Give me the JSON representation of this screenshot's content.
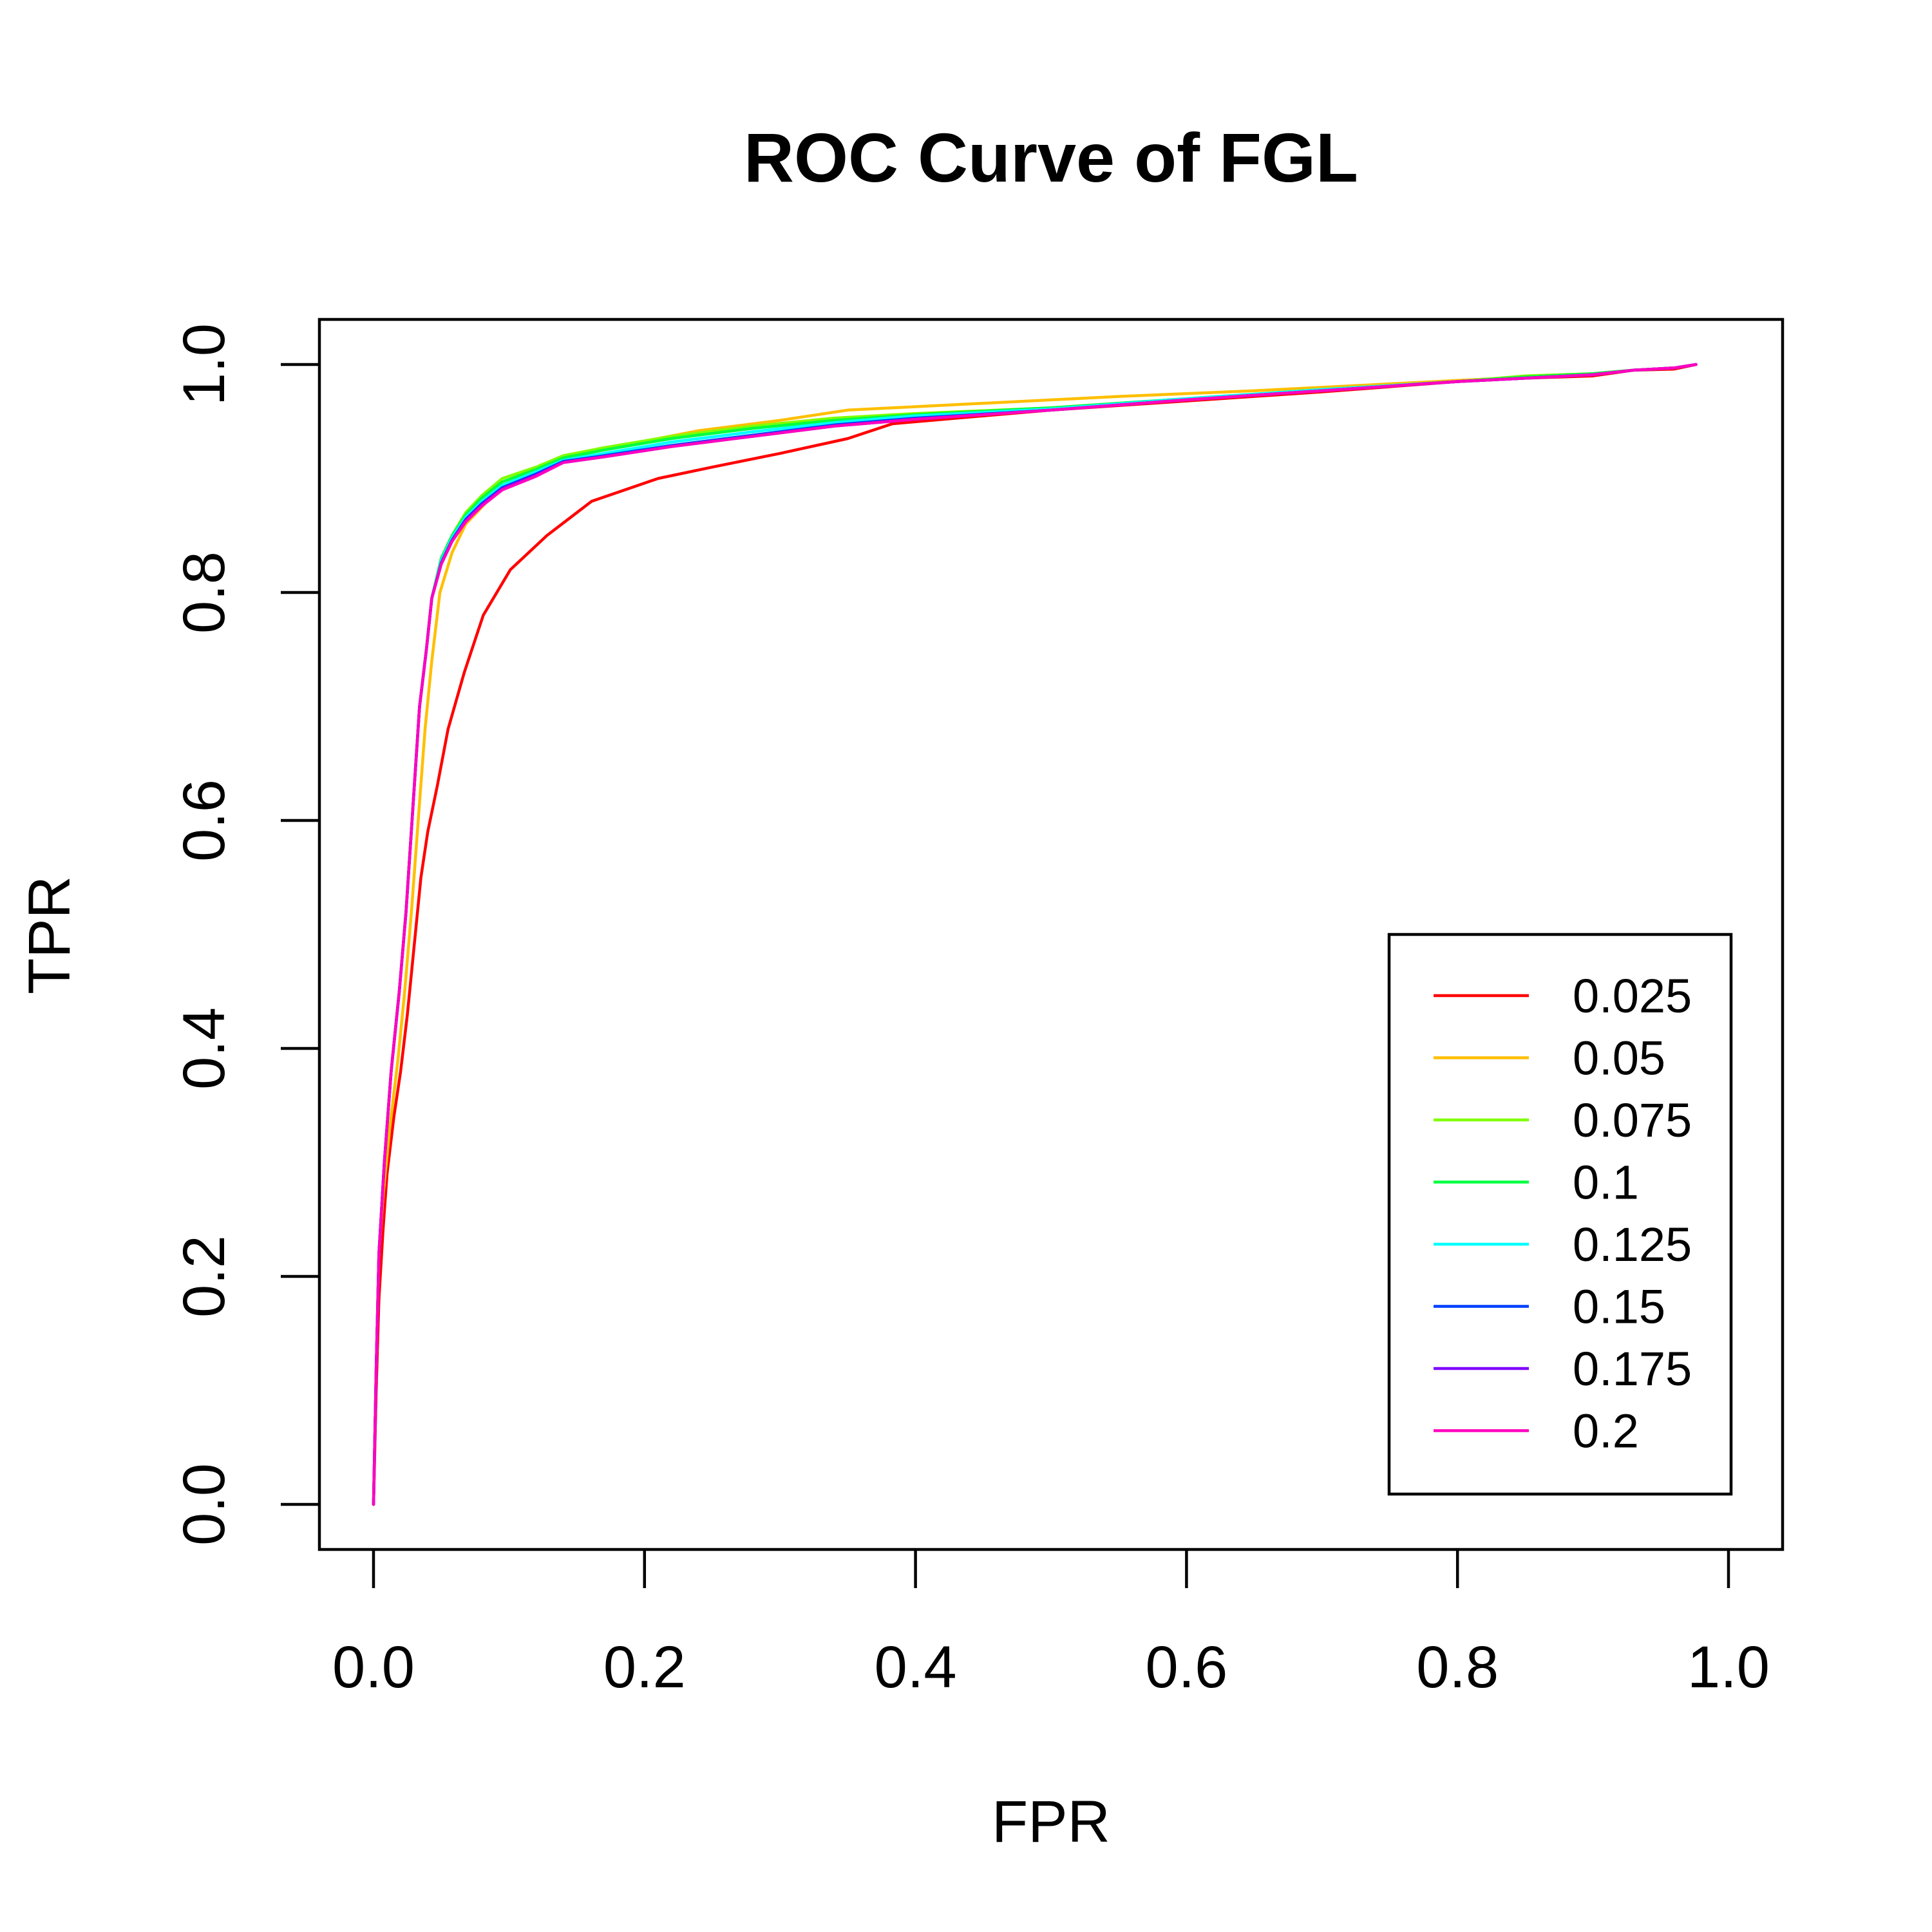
{
  "chart_data": {
    "type": "line",
    "title": "ROC Curve of FGL",
    "xlabel": "FPR",
    "ylabel": "TPR",
    "xlim": [
      0,
      1
    ],
    "ylim": [
      0,
      1
    ],
    "x_ticks": [
      "0.0",
      "0.2",
      "0.4",
      "0.6",
      "0.8",
      "1.0"
    ],
    "y_ticks": [
      "0.0",
      "0.2",
      "0.4",
      "0.6",
      "0.8",
      "1.0"
    ],
    "grid": false,
    "legend_position": "bottom-right",
    "series": [
      {
        "name": "0.025",
        "color": "#FF0000",
        "points": [
          [
            0,
            0
          ],
          [
            0.002,
            0.1
          ],
          [
            0.004,
            0.18
          ],
          [
            0.007,
            0.24
          ],
          [
            0.01,
            0.29
          ],
          [
            0.015,
            0.34
          ],
          [
            0.02,
            0.38
          ],
          [
            0.025,
            0.43
          ],
          [
            0.03,
            0.49
          ],
          [
            0.035,
            0.55
          ],
          [
            0.04,
            0.59
          ],
          [
            0.047,
            0.63
          ],
          [
            0.055,
            0.68
          ],
          [
            0.067,
            0.73
          ],
          [
            0.081,
            0.78
          ],
          [
            0.101,
            0.82
          ],
          [
            0.128,
            0.85
          ],
          [
            0.161,
            0.88
          ],
          [
            0.21,
            0.9
          ],
          [
            0.25,
            0.91
          ],
          [
            0.3,
            0.922
          ],
          [
            0.35,
            0.935
          ],
          [
            0.383,
            0.948
          ],
          [
            0.45,
            0.955
          ],
          [
            0.5,
            0.96
          ],
          [
            0.6,
            0.968
          ],
          [
            0.7,
            0.976
          ],
          [
            0.8,
            0.985
          ],
          [
            0.85,
            0.988
          ],
          [
            0.9,
            0.99
          ],
          [
            0.93,
            0.995
          ],
          [
            0.96,
            0.996
          ],
          [
            0.976,
            1.0
          ]
        ]
      },
      {
        "name": "0.05",
        "color": "#FFBF00",
        "points": [
          [
            0,
            0
          ],
          [
            0.002,
            0.12
          ],
          [
            0.004,
            0.22
          ],
          [
            0.007,
            0.27
          ],
          [
            0.012,
            0.33
          ],
          [
            0.018,
            0.39
          ],
          [
            0.023,
            0.45
          ],
          [
            0.028,
            0.52
          ],
          [
            0.033,
            0.6
          ],
          [
            0.038,
            0.68
          ],
          [
            0.043,
            0.74
          ],
          [
            0.049,
            0.8
          ],
          [
            0.058,
            0.835
          ],
          [
            0.068,
            0.86
          ],
          [
            0.08,
            0.875
          ],
          [
            0.093,
            0.892
          ],
          [
            0.12,
            0.908
          ],
          [
            0.14,
            0.917
          ],
          [
            0.17,
            0.926
          ],
          [
            0.21,
            0.935
          ],
          [
            0.24,
            0.942
          ],
          [
            0.3,
            0.951
          ],
          [
            0.35,
            0.96
          ],
          [
            0.45,
            0.966
          ],
          [
            0.55,
            0.972
          ],
          [
            0.65,
            0.977
          ],
          [
            0.75,
            0.983
          ],
          [
            0.8,
            0.986
          ],
          [
            0.85,
            0.989
          ],
          [
            0.9,
            0.992
          ],
          [
            0.93,
            0.995
          ],
          [
            0.96,
            0.997
          ],
          [
            0.976,
            1.0
          ]
        ]
      },
      {
        "name": "0.075",
        "color": "#80FF00",
        "points": [
          [
            0,
            0
          ],
          [
            0.002,
            0.12
          ],
          [
            0.004,
            0.22
          ],
          [
            0.008,
            0.3
          ],
          [
            0.013,
            0.38
          ],
          [
            0.019,
            0.45
          ],
          [
            0.024,
            0.52
          ],
          [
            0.029,
            0.61
          ],
          [
            0.034,
            0.7
          ],
          [
            0.039,
            0.75
          ],
          [
            0.043,
            0.795
          ],
          [
            0.05,
            0.83
          ],
          [
            0.058,
            0.85
          ],
          [
            0.068,
            0.87
          ],
          [
            0.08,
            0.885
          ],
          [
            0.095,
            0.9
          ],
          [
            0.12,
            0.91
          ],
          [
            0.14,
            0.92
          ],
          [
            0.17,
            0.927
          ],
          [
            0.22,
            0.937
          ],
          [
            0.28,
            0.946
          ],
          [
            0.34,
            0.953
          ],
          [
            0.4,
            0.957
          ],
          [
            0.5,
            0.962
          ],
          [
            0.6,
            0.97
          ],
          [
            0.7,
            0.978
          ],
          [
            0.8,
            0.985
          ],
          [
            0.85,
            0.99
          ],
          [
            0.9,
            0.992
          ],
          [
            0.93,
            0.995
          ],
          [
            0.96,
            0.997
          ],
          [
            0.976,
            1.0
          ]
        ]
      },
      {
        "name": "0.1",
        "color": "#00FF40",
        "points": [
          [
            0,
            0
          ],
          [
            0.002,
            0.12
          ],
          [
            0.004,
            0.22
          ],
          [
            0.008,
            0.3
          ],
          [
            0.013,
            0.38
          ],
          [
            0.019,
            0.45
          ],
          [
            0.024,
            0.52
          ],
          [
            0.029,
            0.61
          ],
          [
            0.034,
            0.7
          ],
          [
            0.039,
            0.75
          ],
          [
            0.043,
            0.795
          ],
          [
            0.05,
            0.83
          ],
          [
            0.058,
            0.85
          ],
          [
            0.068,
            0.868
          ],
          [
            0.08,
            0.883
          ],
          [
            0.095,
            0.897
          ],
          [
            0.12,
            0.908
          ],
          [
            0.14,
            0.918
          ],
          [
            0.17,
            0.925
          ],
          [
            0.22,
            0.935
          ],
          [
            0.28,
            0.944
          ],
          [
            0.34,
            0.951
          ],
          [
            0.4,
            0.956
          ],
          [
            0.5,
            0.962
          ],
          [
            0.6,
            0.97
          ],
          [
            0.7,
            0.978
          ],
          [
            0.8,
            0.985
          ],
          [
            0.85,
            0.989
          ],
          [
            0.9,
            0.992
          ],
          [
            0.93,
            0.995
          ],
          [
            0.96,
            0.997
          ],
          [
            0.976,
            1.0
          ]
        ]
      },
      {
        "name": "0.125",
        "color": "#00FFFF",
        "points": [
          [
            0,
            0
          ],
          [
            0.002,
            0.12
          ],
          [
            0.004,
            0.22
          ],
          [
            0.008,
            0.3
          ],
          [
            0.013,
            0.38
          ],
          [
            0.019,
            0.45
          ],
          [
            0.024,
            0.52
          ],
          [
            0.029,
            0.61
          ],
          [
            0.034,
            0.7
          ],
          [
            0.039,
            0.75
          ],
          [
            0.043,
            0.795
          ],
          [
            0.05,
            0.828
          ],
          [
            0.058,
            0.848
          ],
          [
            0.068,
            0.866
          ],
          [
            0.08,
            0.88
          ],
          [
            0.095,
            0.894
          ],
          [
            0.12,
            0.906
          ],
          [
            0.14,
            0.916
          ],
          [
            0.17,
            0.922
          ],
          [
            0.22,
            0.932
          ],
          [
            0.28,
            0.941
          ],
          [
            0.34,
            0.949
          ],
          [
            0.4,
            0.955
          ],
          [
            0.5,
            0.961
          ],
          [
            0.6,
            0.97
          ],
          [
            0.7,
            0.978
          ],
          [
            0.8,
            0.985
          ],
          [
            0.85,
            0.988
          ],
          [
            0.9,
            0.991
          ],
          [
            0.93,
            0.995
          ],
          [
            0.96,
            0.997
          ],
          [
            0.976,
            1.0
          ]
        ]
      },
      {
        "name": "0.15",
        "color": "#0040FF",
        "points": [
          [
            0,
            0
          ],
          [
            0.002,
            0.12
          ],
          [
            0.004,
            0.22
          ],
          [
            0.008,
            0.3
          ],
          [
            0.013,
            0.38
          ],
          [
            0.019,
            0.45
          ],
          [
            0.024,
            0.52
          ],
          [
            0.029,
            0.61
          ],
          [
            0.034,
            0.7
          ],
          [
            0.039,
            0.75
          ],
          [
            0.043,
            0.795
          ],
          [
            0.05,
            0.826
          ],
          [
            0.058,
            0.846
          ],
          [
            0.068,
            0.864
          ],
          [
            0.08,
            0.878
          ],
          [
            0.095,
            0.892
          ],
          [
            0.12,
            0.904
          ],
          [
            0.14,
            0.915
          ],
          [
            0.17,
            0.92
          ],
          [
            0.22,
            0.929
          ],
          [
            0.28,
            0.938
          ],
          [
            0.34,
            0.947
          ],
          [
            0.4,
            0.953
          ],
          [
            0.5,
            0.96
          ],
          [
            0.6,
            0.969
          ],
          [
            0.7,
            0.977
          ],
          [
            0.8,
            0.985
          ],
          [
            0.85,
            0.988
          ],
          [
            0.9,
            0.991
          ],
          [
            0.93,
            0.995
          ],
          [
            0.96,
            0.997
          ],
          [
            0.976,
            1.0
          ]
        ]
      },
      {
        "name": "0.175",
        "color": "#7F00FF",
        "points": [
          [
            0,
            0
          ],
          [
            0.002,
            0.12
          ],
          [
            0.004,
            0.22
          ],
          [
            0.008,
            0.3
          ],
          [
            0.013,
            0.38
          ],
          [
            0.019,
            0.45
          ],
          [
            0.024,
            0.52
          ],
          [
            0.029,
            0.61
          ],
          [
            0.034,
            0.7
          ],
          [
            0.039,
            0.75
          ],
          [
            0.043,
            0.795
          ],
          [
            0.05,
            0.825
          ],
          [
            0.058,
            0.845
          ],
          [
            0.068,
            0.863
          ],
          [
            0.08,
            0.877
          ],
          [
            0.095,
            0.891
          ],
          [
            0.12,
            0.903
          ],
          [
            0.14,
            0.914
          ],
          [
            0.17,
            0.919
          ],
          [
            0.22,
            0.928
          ],
          [
            0.28,
            0.937
          ],
          [
            0.34,
            0.946
          ],
          [
            0.4,
            0.952
          ],
          [
            0.5,
            0.96
          ],
          [
            0.6,
            0.969
          ],
          [
            0.7,
            0.977
          ],
          [
            0.8,
            0.985
          ],
          [
            0.85,
            0.988
          ],
          [
            0.9,
            0.991
          ],
          [
            0.93,
            0.995
          ],
          [
            0.96,
            0.997
          ],
          [
            0.976,
            1.0
          ]
        ]
      },
      {
        "name": "0.2",
        "color": "#FF00BF",
        "points": [
          [
            0,
            0
          ],
          [
            0.002,
            0.12
          ],
          [
            0.004,
            0.22
          ],
          [
            0.008,
            0.3
          ],
          [
            0.013,
            0.38
          ],
          [
            0.019,
            0.45
          ],
          [
            0.024,
            0.52
          ],
          [
            0.029,
            0.61
          ],
          [
            0.034,
            0.7
          ],
          [
            0.039,
            0.75
          ],
          [
            0.043,
            0.795
          ],
          [
            0.05,
            0.825
          ],
          [
            0.058,
            0.845
          ],
          [
            0.068,
            0.862
          ],
          [
            0.08,
            0.876
          ],
          [
            0.095,
            0.89
          ],
          [
            0.12,
            0.902
          ],
          [
            0.14,
            0.914
          ],
          [
            0.17,
            0.919
          ],
          [
            0.22,
            0.928
          ],
          [
            0.28,
            0.937
          ],
          [
            0.34,
            0.946
          ],
          [
            0.4,
            0.952
          ],
          [
            0.5,
            0.96
          ],
          [
            0.6,
            0.969
          ],
          [
            0.7,
            0.977
          ],
          [
            0.8,
            0.985
          ],
          [
            0.85,
            0.988
          ],
          [
            0.9,
            0.991
          ],
          [
            0.93,
            0.995
          ],
          [
            0.96,
            0.997
          ],
          [
            0.976,
            1.0
          ]
        ]
      }
    ]
  }
}
